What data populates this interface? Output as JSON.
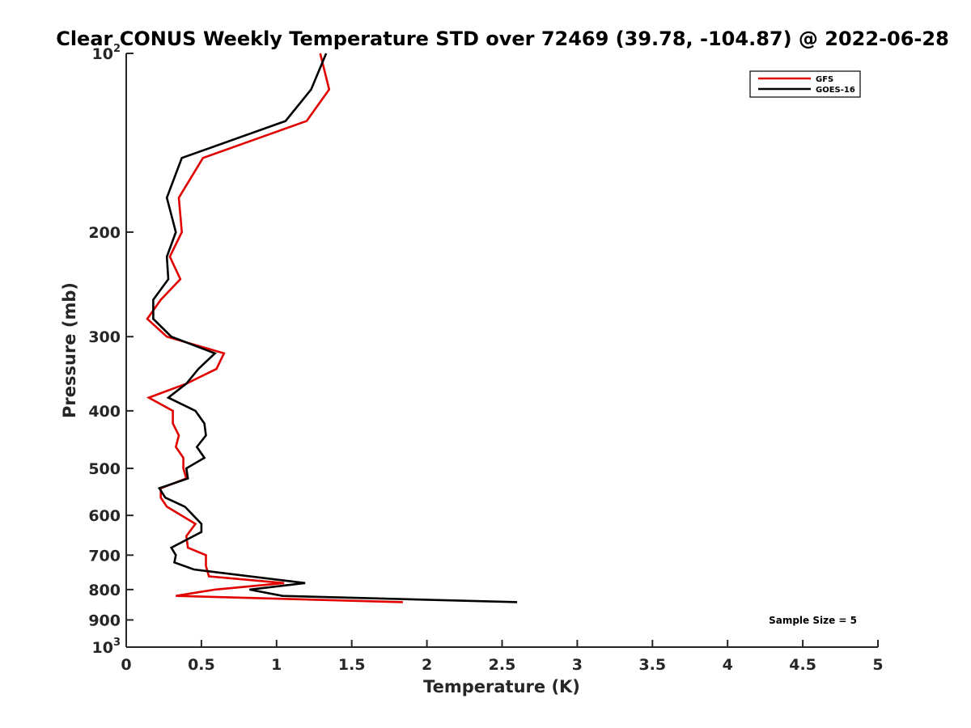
{
  "chart_data": {
    "type": "line",
    "title": "Clear CONUS Weekly Temperature STD over 72469 (39.78, -104.87) @ 2022-06-28",
    "xlabel": "Temperature (K)",
    "ylabel": "Pressure (mb)",
    "xlim": [
      0,
      5
    ],
    "ylim": [
      100,
      1000
    ],
    "y_scale": "log",
    "y_reversed": true,
    "x_ticks": [
      "0",
      "0.5",
      "1",
      "1.5",
      "2",
      "2.5",
      "3",
      "3.5",
      "4",
      "4.5",
      "5"
    ],
    "x_tick_values": [
      0,
      0.5,
      1,
      1.5,
      2,
      2.5,
      3,
      3.5,
      4,
      4.5,
      5
    ],
    "y_ticks": [
      {
        "value": 100,
        "label": "10",
        "sup": "2"
      },
      {
        "value": 200,
        "label": "200",
        "sup": ""
      },
      {
        "value": 300,
        "label": "300",
        "sup": ""
      },
      {
        "value": 400,
        "label": "400",
        "sup": ""
      },
      {
        "value": 500,
        "label": "500",
        "sup": ""
      },
      {
        "value": 600,
        "label": "600",
        "sup": ""
      },
      {
        "value": 700,
        "label": "700",
        "sup": ""
      },
      {
        "value": 800,
        "label": "800",
        "sup": ""
      },
      {
        "value": 900,
        "label": "900",
        "sup": ""
      },
      {
        "value": 1000,
        "label": "10",
        "sup": "3"
      }
    ],
    "legend_position": "top-right",
    "annotation": "Sample Size = 5",
    "series": [
      {
        "name": "GFS",
        "color": "#e00000",
        "points": [
          [
            1.29,
            100
          ],
          [
            1.35,
            115
          ],
          [
            1.2,
            130
          ],
          [
            0.51,
            150
          ],
          [
            0.35,
            175
          ],
          [
            0.37,
            200
          ],
          [
            0.29,
            220
          ],
          [
            0.36,
            240
          ],
          [
            0.23,
            260
          ],
          [
            0.14,
            280
          ],
          [
            0.27,
            300
          ],
          [
            0.65,
            320
          ],
          [
            0.6,
            340
          ],
          [
            0.4,
            360
          ],
          [
            0.15,
            380
          ],
          [
            0.31,
            400
          ],
          [
            0.31,
            420
          ],
          [
            0.35,
            440
          ],
          [
            0.33,
            460
          ],
          [
            0.38,
            480
          ],
          [
            0.38,
            500
          ],
          [
            0.4,
            520
          ],
          [
            0.23,
            540
          ],
          [
            0.23,
            560
          ],
          [
            0.27,
            580
          ],
          [
            0.46,
            620
          ],
          [
            0.4,
            650
          ],
          [
            0.41,
            680
          ],
          [
            0.53,
            700
          ],
          [
            0.53,
            730
          ],
          [
            0.55,
            760
          ],
          [
            1.05,
            780
          ],
          [
            0.59,
            800
          ],
          [
            0.33,
            820
          ],
          [
            1.84,
            840
          ]
        ]
      },
      {
        "name": "GOES-16",
        "color": "#000000",
        "points": [
          [
            1.33,
            100
          ],
          [
            1.23,
            115
          ],
          [
            1.06,
            130
          ],
          [
            0.37,
            150
          ],
          [
            0.27,
            175
          ],
          [
            0.33,
            200
          ],
          [
            0.27,
            220
          ],
          [
            0.28,
            240
          ],
          [
            0.18,
            260
          ],
          [
            0.18,
            280
          ],
          [
            0.3,
            300
          ],
          [
            0.59,
            320
          ],
          [
            0.48,
            340
          ],
          [
            0.4,
            360
          ],
          [
            0.28,
            380
          ],
          [
            0.46,
            400
          ],
          [
            0.52,
            420
          ],
          [
            0.53,
            440
          ],
          [
            0.47,
            460
          ],
          [
            0.52,
            480
          ],
          [
            0.4,
            500
          ],
          [
            0.41,
            520
          ],
          [
            0.22,
            540
          ],
          [
            0.26,
            560
          ],
          [
            0.39,
            580
          ],
          [
            0.5,
            620
          ],
          [
            0.5,
            640
          ],
          [
            0.3,
            680
          ],
          [
            0.33,
            700
          ],
          [
            0.32,
            720
          ],
          [
            0.45,
            740
          ],
          [
            1.19,
            780
          ],
          [
            0.82,
            800
          ],
          [
            1.04,
            820
          ],
          [
            2.6,
            840
          ]
        ]
      }
    ]
  }
}
